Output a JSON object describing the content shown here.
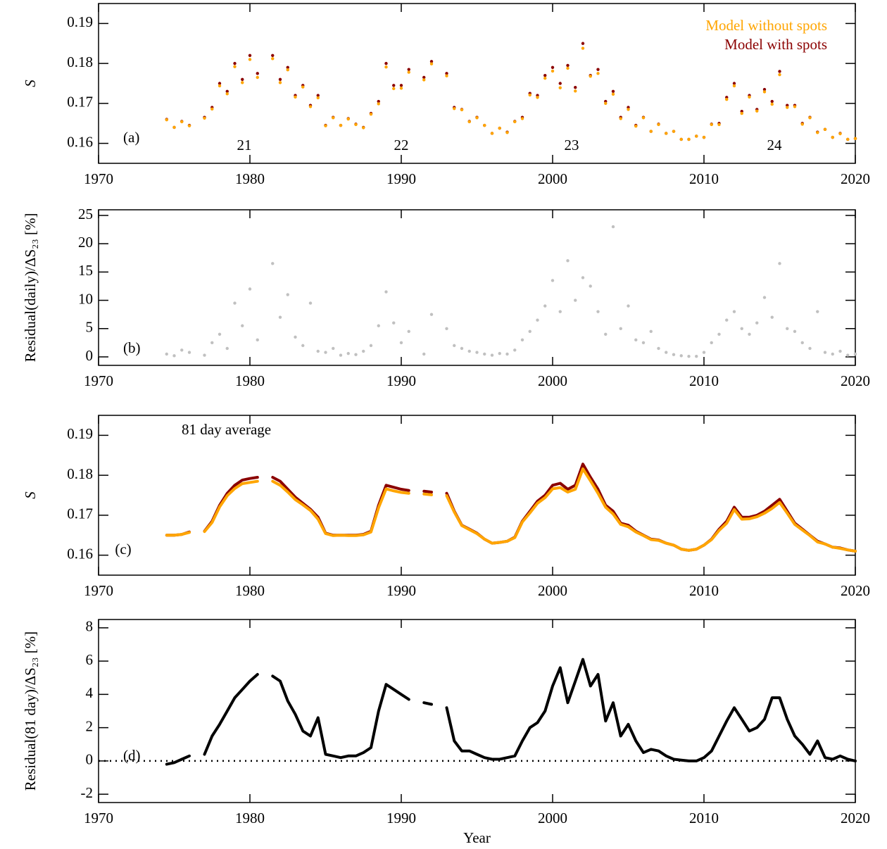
{
  "chart_data": [
    {
      "type": "scatter",
      "ylabel": "S",
      "legend": "upper right",
      "annotations": [
        "(a)",
        "21",
        "22",
        "23",
        "24"
      ],
      "xlim": [
        1970,
        2020
      ],
      "xticks": [
        1970,
        1980,
        1990,
        2000,
        2010,
        2020
      ],
      "ylim": [
        0.155,
        0.195
      ],
      "yticks": [
        0.16,
        0.17,
        0.18,
        0.19
      ],
      "x": [
        1974.5,
        1975,
        1975.5,
        1976,
        1976.5,
        1977,
        1977.5,
        1978,
        1978.5,
        1979,
        1979.5,
        1980,
        1980.5,
        1981,
        1981.5,
        1982,
        1982.5,
        1983,
        1983.5,
        1984,
        1984.5,
        1985,
        1985.5,
        1986,
        1986.5,
        1987,
        1987.5,
        1988,
        1988.5,
        1989,
        1989.5,
        1990,
        1990.5,
        1991,
        1991.5,
        1992,
        1992.5,
        1993,
        1993.5,
        1994,
        1994.5,
        1995,
        1995.5,
        1996,
        1996.5,
        1997,
        1997.5,
        1998,
        1998.5,
        1999,
        1999.5,
        2000,
        2000.5,
        2001,
        2001.5,
        2002,
        2002.5,
        2003,
        2003.5,
        2004,
        2004.5,
        2005,
        2005.5,
        2006,
        2006.5,
        2007,
        2007.5,
        2008,
        2008.5,
        2009,
        2009.5,
        2010,
        2010.5,
        2011,
        2011.5,
        2012,
        2012.5,
        2013,
        2013.5,
        2014,
        2014.5,
        2015,
        2015.5,
        2016,
        2016.5,
        2017,
        2017.5,
        2018,
        2018.5,
        2019,
        2019.5,
        2020
      ],
      "series": [
        {
          "name": "Model without spots",
          "color": "#ffa500",
          "values": [
            0.1659,
            0.164,
            0.1654,
            0.1644,
            null,
            0.1663,
            0.1686,
            0.1744,
            0.1724,
            0.1792,
            0.1752,
            0.181,
            0.1765,
            null,
            0.1812,
            0.1752,
            0.1784,
            0.1716,
            0.1741,
            0.1692,
            0.1714,
            0.1644,
            0.1664,
            0.1645,
            0.1661,
            0.1647,
            0.1639,
            0.1673,
            0.1699,
            0.1791,
            0.1737,
            0.1738,
            0.1778,
            null,
            0.1759,
            0.1799,
            null,
            0.1769,
            0.1687,
            0.1684,
            0.1654,
            0.1664,
            0.1645,
            0.1625,
            0.1638,
            0.1627,
            0.1654,
            0.1662,
            0.1721,
            0.1715,
            0.1763,
            0.1781,
            0.1739,
            0.1788,
            0.1731,
            0.1838,
            0.1768,
            0.1775,
            0.17,
            0.1723,
            0.1662,
            0.1685,
            0.1643,
            0.1664,
            0.163,
            0.1647,
            0.1625,
            0.163,
            0.161,
            0.161,
            0.1618,
            0.1615,
            0.1647,
            0.1647,
            0.171,
            0.1744,
            0.1675,
            0.1716,
            0.1681,
            0.1729,
            0.1698,
            0.1772,
            0.169,
            0.1692,
            0.1648,
            0.1664,
            0.1627,
            0.1635,
            0.1615,
            0.1624,
            0.161,
            0.1612
          ]
        },
        {
          "name": "Model with spots",
          "color": "#8b0000",
          "values": [
            0.166,
            0.164,
            0.1655,
            0.1645,
            null,
            0.1665,
            0.169,
            0.175,
            0.173,
            0.18,
            0.176,
            0.182,
            0.1775,
            null,
            0.182,
            0.176,
            0.179,
            0.172,
            0.1745,
            0.1695,
            0.172,
            0.1645,
            0.1665,
            0.1645,
            0.1662,
            0.1648,
            0.164,
            0.1675,
            0.1705,
            0.18,
            0.1745,
            0.1745,
            0.1785,
            null,
            0.1765,
            0.1805,
            null,
            0.1775,
            0.169,
            0.1685,
            0.1655,
            0.1665,
            0.1645,
            0.1625,
            0.1638,
            0.1628,
            0.1655,
            0.1665,
            0.1725,
            0.172,
            0.177,
            0.179,
            0.175,
            0.1795,
            0.174,
            0.185,
            0.177,
            0.1785,
            0.1705,
            0.173,
            0.1665,
            0.169,
            0.1645,
            0.1665,
            0.163,
            0.1648,
            0.1625,
            0.163,
            0.161,
            0.161,
            0.1618,
            0.1615,
            0.1648,
            0.165,
            0.1715,
            0.175,
            0.168,
            0.172,
            0.1685,
            0.1735,
            0.1705,
            0.178,
            0.1695,
            0.1695,
            0.165,
            0.1665,
            0.1628,
            0.1635,
            0.1615,
            0.1625,
            0.161,
            0.1612
          ]
        }
      ]
    },
    {
      "type": "scatter",
      "ylabel": "Residual(daily)/ΔS₂₃ [%]",
      "annotations": [
        "(b)"
      ],
      "color": "#c0c0c0",
      "xlim": [
        1970,
        2020
      ],
      "xticks": [
        1970,
        1980,
        1990,
        2000,
        2010,
        2020
      ],
      "ylim": [
        -1.5,
        26
      ],
      "yticks": [
        0,
        5,
        10,
        15,
        20,
        25
      ],
      "x": [
        1974.5,
        1975,
        1975.5,
        1976,
        1976.5,
        1977,
        1977.5,
        1978,
        1978.5,
        1979,
        1979.5,
        1980,
        1980.5,
        1981,
        1981.5,
        1982,
        1982.5,
        1983,
        1983.5,
        1984,
        1984.5,
        1985,
        1985.5,
        1986,
        1986.5,
        1987,
        1987.5,
        1988,
        1988.5,
        1989,
        1989.5,
        1990,
        1990.5,
        1991,
        1991.5,
        1992,
        1992.5,
        1993,
        1993.5,
        1994,
        1994.5,
        1995,
        1995.5,
        1996,
        1996.5,
        1997,
        1997.5,
        1998,
        1998.5,
        1999,
        1999.5,
        2000,
        2000.5,
        2001,
        2001.5,
        2002,
        2002.5,
        2003,
        2003.5,
        2004,
        2004.5,
        2005,
        2005.5,
        2006,
        2006.5,
        2007,
        2007.5,
        2008,
        2008.5,
        2009,
        2009.5,
        2010,
        2010.5,
        2011,
        2011.5,
        2012,
        2012.5,
        2013,
        2013.5,
        2014,
        2014.5,
        2015,
        2015.5,
        2016,
        2016.5,
        2017,
        2017.5,
        2018,
        2018.5,
        2019,
        2019.5,
        2020
      ],
      "values": [
        0.5,
        0.2,
        1.2,
        0.8,
        null,
        0.3,
        2.5,
        4.0,
        1.5,
        9.5,
        5.5,
        12.0,
        3.0,
        null,
        16.5,
        7.0,
        11.0,
        3.5,
        2.0,
        9.5,
        1.0,
        0.8,
        1.5,
        0.3,
        0.6,
        0.4,
        1.0,
        2.0,
        5.5,
        11.5,
        6.0,
        2.5,
        4.5,
        null,
        0.5,
        7.5,
        null,
        5.0,
        2.0,
        1.5,
        1.0,
        0.8,
        0.5,
        0.3,
        0.6,
        0.5,
        1.2,
        3.0,
        4.5,
        6.5,
        9.0,
        13.5,
        8.0,
        17.0,
        10.0,
        14.0,
        12.5,
        8.0,
        4.0,
        23.0,
        5.0,
        9.0,
        3.0,
        2.5,
        4.5,
        1.5,
        0.8,
        0.4,
        0.2,
        0.1,
        0.1,
        0.8,
        2.5,
        4.0,
        6.5,
        8.0,
        5.0,
        4.0,
        6.0,
        10.5,
        7.0,
        16.5,
        5.0,
        4.5,
        2.5,
        1.5,
        8.0,
        0.8,
        0.5,
        1.0,
        0.3,
        0.5
      ]
    },
    {
      "type": "line",
      "ylabel": "S",
      "annotations": [
        "81 day average",
        "(c)"
      ],
      "xlim": [
        1970,
        2020
      ],
      "xticks": [
        1970,
        1980,
        1990,
        2000,
        2010,
        2020
      ],
      "ylim": [
        0.155,
        0.195
      ],
      "yticks": [
        0.16,
        0.17,
        0.18,
        0.19
      ],
      "x": [
        1974.5,
        1975,
        1975.5,
        1976,
        1976.5,
        1977,
        1977.5,
        1978,
        1978.5,
        1979,
        1979.5,
        1980,
        1980.5,
        1981,
        1981.5,
        1982,
        1982.5,
        1983,
        1983.5,
        1984,
        1984.5,
        1985,
        1985.5,
        1986,
        1986.5,
        1987,
        1987.5,
        1988,
        1988.5,
        1989,
        1989.5,
        1990,
        1990.5,
        1991,
        1991.5,
        1992,
        1992.5,
        1993,
        1993.5,
        1994,
        1994.5,
        1995,
        1995.5,
        1996,
        1996.5,
        1997,
        1997.5,
        1998,
        1998.5,
        1999,
        1999.5,
        2000,
        2000.5,
        2001,
        2001.5,
        2002,
        2002.5,
        2003,
        2003.5,
        2004,
        2004.5,
        2005,
        2005.5,
        2006,
        2006.5,
        2007,
        2007.5,
        2008,
        2008.5,
        2009,
        2009.5,
        2010,
        2010.5,
        2011,
        2011.5,
        2012,
        2012.5,
        2013,
        2013.5,
        2014,
        2014.5,
        2015,
        2015.5,
        2016,
        2016.5,
        2017,
        2017.5,
        2018,
        2018.5,
        2019,
        2019.5,
        2020
      ],
      "series": [
        {
          "color": "#ffa500",
          "values": [
            0.165,
            0.165,
            0.1652,
            0.1657,
            null,
            0.1659,
            0.1682,
            0.1721,
            0.1749,
            0.1767,
            0.1779,
            0.1782,
            0.1785,
            null,
            0.1785,
            0.1775,
            0.1758,
            0.1739,
            0.1726,
            0.1712,
            0.169,
            0.1654,
            0.1649,
            0.165,
            0.1649,
            0.1649,
            0.1651,
            0.1658,
            0.1719,
            0.1766,
            0.1761,
            0.1757,
            0.1755,
            null,
            0.1753,
            0.1751,
            null,
            0.1749,
            0.1708,
            0.1674,
            0.1664,
            0.1654,
            0.164,
            0.163,
            0.1632,
            0.1635,
            0.1644,
            0.1683,
            0.1706,
            0.173,
            0.1744,
            0.1766,
            0.1769,
            0.1758,
            0.1765,
            0.1816,
            0.1786,
            0.1755,
            0.172,
            0.1703,
            0.1677,
            0.1671,
            0.1658,
            0.1649,
            0.1639,
            0.1637,
            0.163,
            0.1625,
            0.1615,
            0.1612,
            0.1615,
            0.1625,
            0.1639,
            0.1662,
            0.168,
            0.1714,
            0.169,
            0.1691,
            0.1696,
            0.1705,
            0.1717,
            0.1732,
            0.1705,
            0.1677,
            0.1663,
            0.1649,
            0.1633,
            0.1628,
            0.162,
            0.1617,
            0.1613,
            0.161
          ]
        },
        {
          "color": "#8b0000",
          "values": [
            0.165,
            0.165,
            0.1652,
            0.1658,
            null,
            0.166,
            0.1685,
            0.1725,
            0.1755,
            0.1775,
            0.1788,
            0.1792,
            0.1795,
            null,
            0.1795,
            0.1785,
            0.1765,
            0.1745,
            0.173,
            0.1715,
            0.1695,
            0.1655,
            0.165,
            0.165,
            0.165,
            0.165,
            0.1652,
            0.166,
            0.1725,
            0.1775,
            0.177,
            0.1765,
            0.1762,
            null,
            0.176,
            0.1758,
            null,
            0.1755,
            0.171,
            0.1675,
            0.1665,
            0.1655,
            0.164,
            0.163,
            0.1632,
            0.1635,
            0.1645,
            0.1685,
            0.171,
            0.1735,
            0.175,
            0.1775,
            0.178,
            0.1765,
            0.1775,
            0.1828,
            0.1795,
            0.1765,
            0.1725,
            0.171,
            0.168,
            0.1675,
            0.166,
            0.165,
            0.164,
            0.1638,
            0.163,
            0.1625,
            0.1615,
            0.1612,
            0.1615,
            0.1625,
            0.164,
            0.1665,
            0.1685,
            0.172,
            0.1695,
            0.1695,
            0.17,
            0.171,
            0.1725,
            0.174,
            0.171,
            0.168,
            0.1665,
            0.165,
            0.1635,
            0.1628,
            0.162,
            0.1618,
            0.1613,
            0.161
          ]
        }
      ]
    },
    {
      "type": "line",
      "ylabel": "Residual(81 day)/ΔS₂₃ [%]",
      "xlabel": "Year",
      "annotations": [
        "(d)"
      ],
      "color": "#000000",
      "hline": 0,
      "xlim": [
        1970,
        2020
      ],
      "xticks": [
        1970,
        1980,
        1990,
        2000,
        2010,
        2020
      ],
      "ylim": [
        -2.5,
        8.5
      ],
      "yticks": [
        -2,
        0,
        2,
        4,
        6,
        8
      ],
      "x": [
        1974.5,
        1975,
        1975.5,
        1976,
        1976.5,
        1977,
        1977.5,
        1978,
        1978.5,
        1979,
        1979.5,
        1980,
        1980.5,
        1981,
        1981.5,
        1982,
        1982.5,
        1983,
        1983.5,
        1984,
        1984.5,
        1985,
        1985.5,
        1986,
        1986.5,
        1987,
        1987.5,
        1988,
        1988.5,
        1989,
        1989.5,
        1990,
        1990.5,
        1991,
        1991.5,
        1992,
        1992.5,
        1993,
        1993.5,
        1994,
        1994.5,
        1995,
        1995.5,
        1996,
        1996.5,
        1997,
        1997.5,
        1998,
        1998.5,
        1999,
        1999.5,
        2000,
        2000.5,
        2001,
        2001.5,
        2002,
        2002.5,
        2003,
        2003.5,
        2004,
        2004.5,
        2005,
        2005.5,
        2006,
        2006.5,
        2007,
        2007.5,
        2008,
        2008.5,
        2009,
        2009.5,
        2010,
        2010.5,
        2011,
        2011.5,
        2012,
        2012.5,
        2013,
        2013.5,
        2014,
        2014.5,
        2015,
        2015.5,
        2016,
        2016.5,
        2017,
        2017.5,
        2018,
        2018.5,
        2019,
        2019.5,
        2020
      ],
      "values": [
        -0.2,
        -0.1,
        0.1,
        0.3,
        null,
        0.4,
        1.5,
        2.2,
        3.0,
        3.8,
        4.3,
        4.8,
        5.2,
        null,
        5.1,
        4.8,
        3.6,
        2.8,
        1.8,
        1.5,
        2.6,
        0.4,
        0.3,
        0.2,
        0.3,
        0.3,
        0.5,
        0.8,
        3.0,
        4.6,
        4.3,
        4.0,
        3.7,
        null,
        3.5,
        3.4,
        null,
        3.2,
        1.2,
        0.6,
        0.6,
        0.4,
        0.2,
        0.1,
        0.1,
        0.2,
        0.3,
        1.2,
        2.0,
        2.3,
        3.0,
        4.5,
        5.6,
        3.5,
        4.8,
        6.1,
        4.5,
        5.2,
        2.4,
        3.5,
        1.5,
        2.2,
        1.2,
        0.5,
        0.7,
        0.6,
        0.3,
        0.1,
        0.05,
        0.0,
        0.0,
        0.2,
        0.6,
        1.5,
        2.4,
        3.2,
        2.5,
        1.8,
        2.0,
        2.5,
        3.8,
        3.8,
        2.5,
        1.5,
        1.0,
        0.4,
        1.2,
        0.2,
        0.1,
        0.3,
        0.1,
        0.0
      ]
    }
  ]
}
